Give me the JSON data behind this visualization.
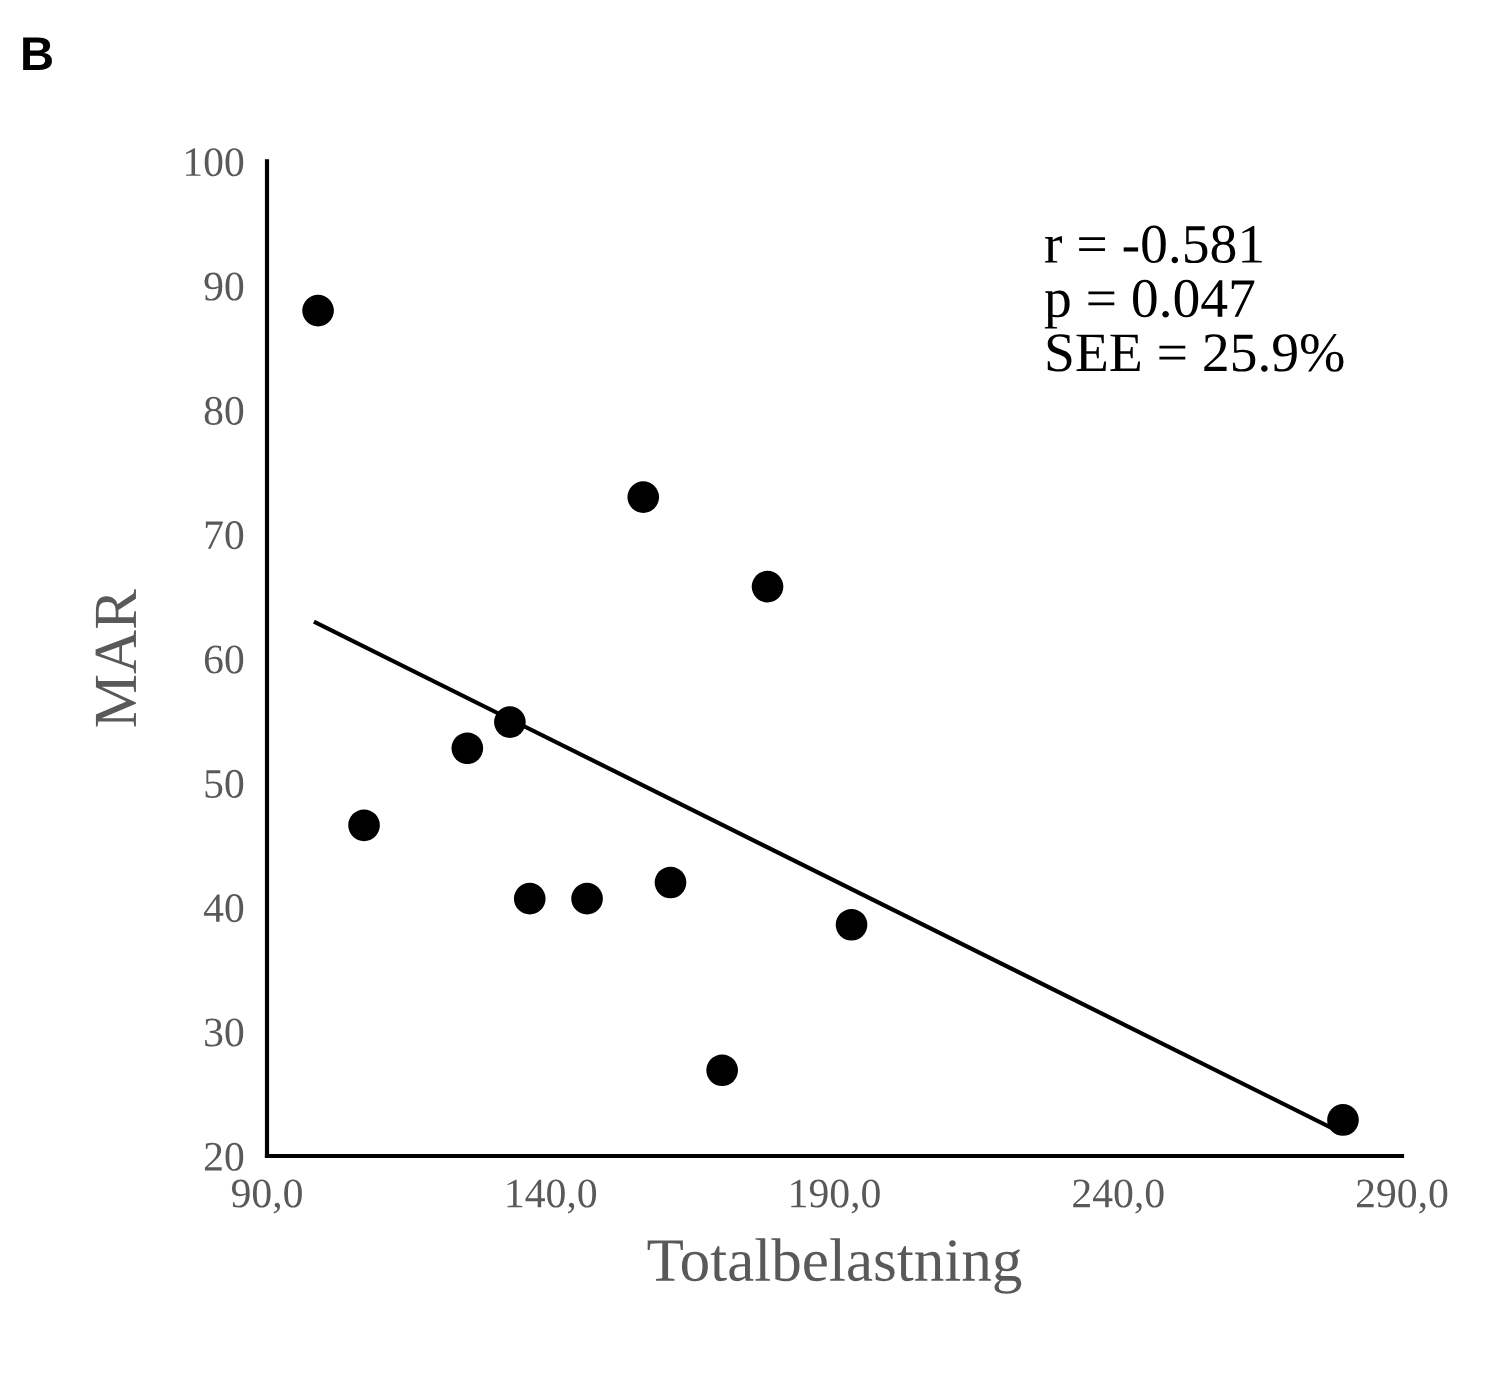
{
  "chart_data": {
    "type": "scatter",
    "title": "B",
    "xlabel": "Totalbelastning",
    "ylabel": "MAR",
    "xlim": [
      90,
      290
    ],
    "ylim": [
      20,
      100
    ],
    "xticks": [
      {
        "value": 90,
        "label": "90,0"
      },
      {
        "value": 140,
        "label": "140,0"
      },
      {
        "value": 190,
        "label": "190,0"
      },
      {
        "value": 240,
        "label": "240,0"
      },
      {
        "value": 290,
        "label": "290,0"
      }
    ],
    "yticks": [
      20,
      30,
      40,
      50,
      60,
      70,
      80,
      90,
      100
    ],
    "series": [
      {
        "color": "#000000",
        "marker": "circle",
        "x": [
          99.0,
          107.1,
          125.3,
          132.8,
          136.3,
          146.4,
          156.3,
          161.1,
          170.2,
          178.2,
          193.0,
          279.6
        ],
        "values": [
          88.0,
          46.6,
          52.8,
          54.9,
          40.7,
          40.7,
          73.0,
          42.0,
          26.9,
          65.8,
          38.6,
          22.9
        ]
      },
      {
        "type": "line",
        "color": "#000000",
        "marker": "none",
        "line_style": "solid",
        "x": [
          98.6,
          279.2
        ],
        "values": [
          62.9,
          21.9
        ]
      }
    ],
    "annotations": [
      "r = -0.581\np = 0.047\nSEE = 25.9%"
    ],
    "grid": false,
    "legend": false
  }
}
